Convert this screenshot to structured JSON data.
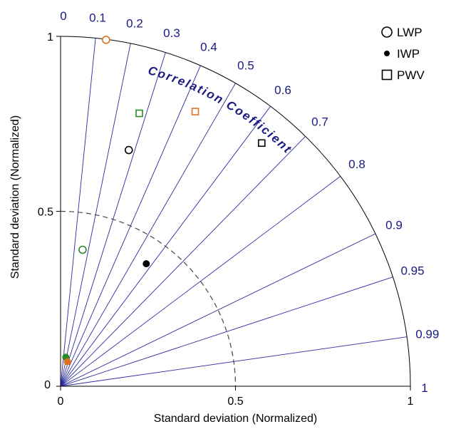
{
  "chart_data": {
    "type": "scatter",
    "subtype": "taylor-diagram",
    "title": "",
    "xlabel": "Standard deviation (Normalized)",
    "ylabel": "Standard deviation (Normalized)",
    "arc_label": "Correlation Coefficient",
    "std_range": [
      0,
      1
    ],
    "std_ticks": [
      {
        "value": 0,
        "label": "0"
      },
      {
        "value": 0.5,
        "label": "0.5"
      },
      {
        "value": 1,
        "label": "1"
      }
    ],
    "reference_std": 0.5,
    "correlation_ticks": [
      {
        "value": 0,
        "label": "0"
      },
      {
        "value": 0.1,
        "label": "0.1"
      },
      {
        "value": 0.2,
        "label": "0.2"
      },
      {
        "value": 0.3,
        "label": "0.3"
      },
      {
        "value": 0.4,
        "label": "0.4"
      },
      {
        "value": 0.5,
        "label": "0.5"
      },
      {
        "value": 0.6,
        "label": "0.6"
      },
      {
        "value": 0.7,
        "label": "0.7"
      },
      {
        "value": 0.8,
        "label": "0.8"
      },
      {
        "value": 0.9,
        "label": "0.9"
      },
      {
        "value": 0.95,
        "label": "0.95"
      },
      {
        "value": 0.99,
        "label": "0.99"
      },
      {
        "value": 1,
        "label": "1"
      }
    ],
    "legend": {
      "placement": "top-right",
      "entries": [
        {
          "name": "LWP",
          "marker": "open-circle"
        },
        {
          "name": "IWP",
          "marker": "filled-circle"
        },
        {
          "name": "PWV",
          "marker": "open-square"
        }
      ]
    },
    "points": [
      {
        "variable": "LWP",
        "marker": "open-circle",
        "color": "#e07020",
        "x": 0.13,
        "y": 0.99
      },
      {
        "variable": "LWP",
        "marker": "open-circle",
        "color": "#000000",
        "x": 0.195,
        "y": 0.675
      },
      {
        "variable": "LWP",
        "marker": "open-circle",
        "color": "#2a8a2a",
        "x": 0.063,
        "y": 0.39
      },
      {
        "variable": "IWP",
        "marker": "filled-circle",
        "color": "#000000",
        "x": 0.245,
        "y": 0.35
      },
      {
        "variable": "IWP",
        "marker": "filled-circle",
        "color": "#2a8a2a",
        "x": 0.015,
        "y": 0.083
      },
      {
        "variable": "IWP",
        "marker": "filled-circle",
        "color": "#e07020",
        "x": 0.02,
        "y": 0.07
      },
      {
        "variable": "PWV",
        "marker": "open-square",
        "color": "#2a8a2a",
        "x": 0.225,
        "y": 0.78
      },
      {
        "variable": "PWV",
        "marker": "open-square",
        "color": "#e07020",
        "x": 0.385,
        "y": 0.785
      },
      {
        "variable": "PWV",
        "marker": "open-square",
        "color": "#000000",
        "x": 0.575,
        "y": 0.695
      }
    ],
    "colors": {
      "radial_lines": "#2a2aa0",
      "tick_labels": "#1a1a80",
      "reference_arc": "#444444",
      "orange": "#e07020",
      "green": "#2a8a2a",
      "black": "#000000"
    }
  }
}
